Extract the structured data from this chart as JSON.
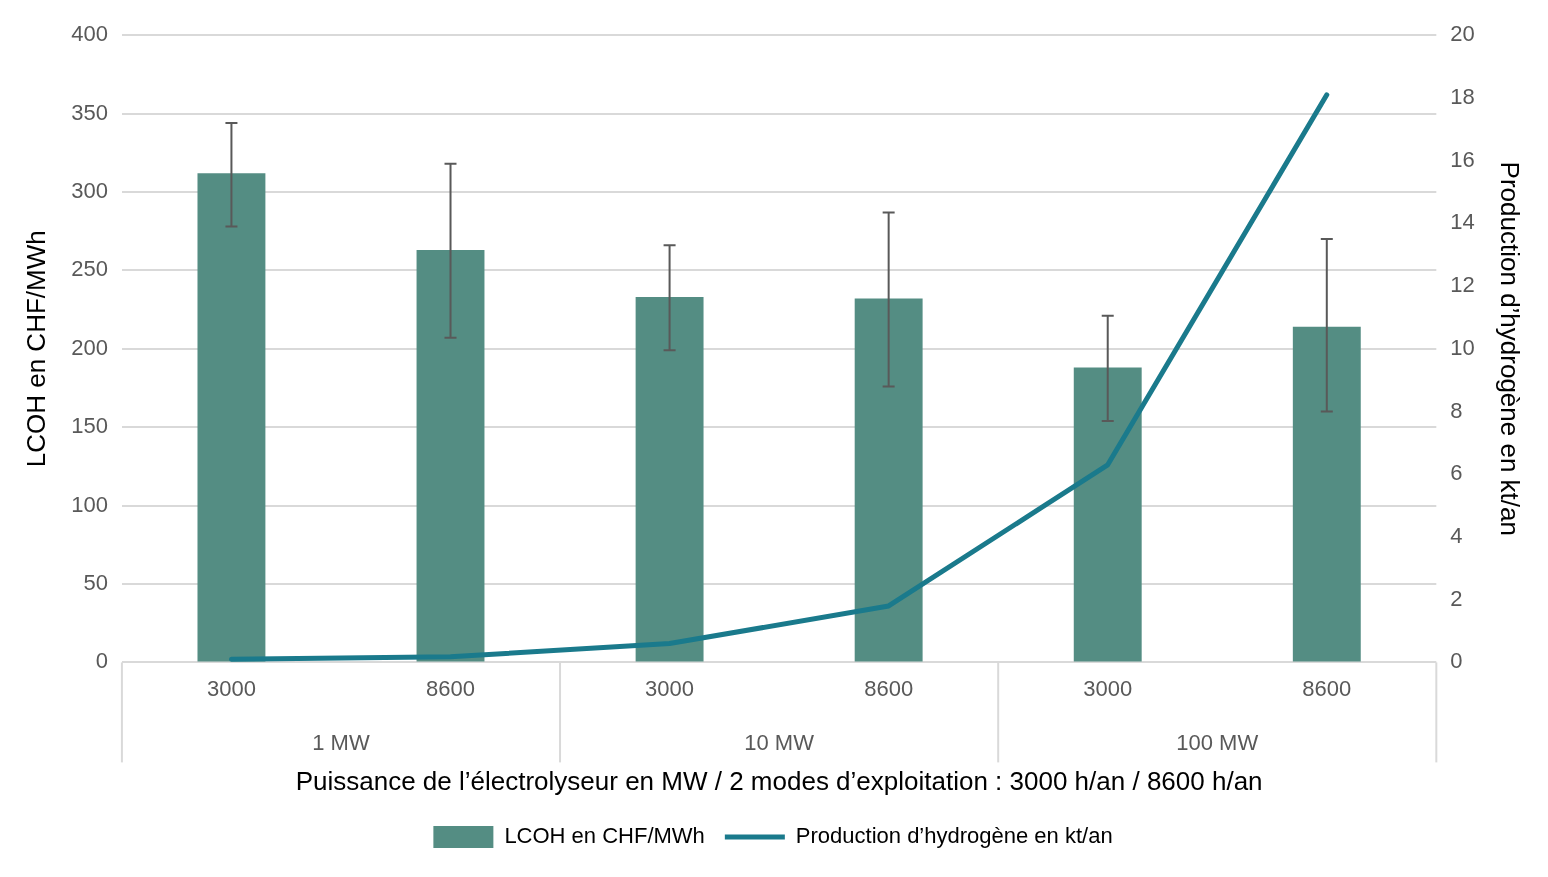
{
  "chart_data": {
    "type": "bar",
    "categories": [
      "3000",
      "8600",
      "3000",
      "8600",
      "3000",
      "8600"
    ],
    "xlabel": "Puissance de l’électrolyseur en MW / 2 modes d’exploitation : 3000 h/an / 8600 h/an",
    "ylabel": "LCOH en CHF/MWh",
    "y2label": "Production d’hydrogène en kt/an",
    "annotations": [
      "1 MW",
      "10 MW",
      "100 MW"
    ],
    "series": [
      {
        "name": "LCOH en CHF/MWh",
        "color": "#548d83",
        "values": [
          312,
          263,
          233,
          232,
          188,
          214
        ],
        "errors": [
          [
            278,
            344
          ],
          [
            207,
            318
          ],
          [
            199,
            266
          ],
          [
            176,
            287
          ],
          [
            154,
            221
          ],
          [
            160,
            270
          ]
        ]
      },
      {
        "name": "Production d’hydrogène en kt/an",
        "type": "line",
        "axis": "y2",
        "color": "#1a7a8c",
        "values": [
          0.1,
          0.18,
          0.6,
          1.8,
          6.3,
          18.1
        ]
      }
    ],
    "ylim": [
      0,
      400
    ],
    "yticks": [
      0,
      50,
      100,
      150,
      200,
      250,
      300,
      350,
      400
    ],
    "y2lim": [
      0,
      20
    ],
    "y2ticks": [
      0,
      2,
      4,
      6,
      8,
      10,
      12,
      14,
      16,
      18,
      20
    ],
    "grid": "y",
    "legend": "bottom",
    "marker": "none",
    "line_style": "solid"
  }
}
